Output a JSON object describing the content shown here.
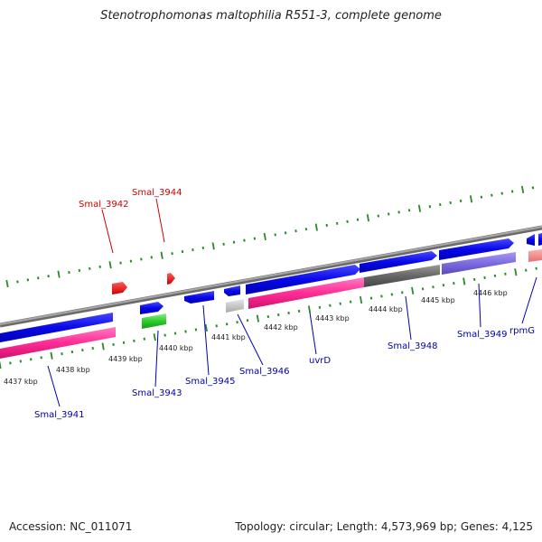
{
  "title": "Stenotrophomonas maltophilia R551-3, complete genome",
  "footer": {
    "accession": "Accession: NC_011071",
    "summary": "Topology: circular; Length: 4,573,969 bp; Genes: 4,125"
  },
  "colors": {
    "backbone": "#888888",
    "tick": "#2a8a2a",
    "forward_gene": "#0a0ae6",
    "reverse_rna": "#ff2d95",
    "hypothetical_label": "#cc0000",
    "gene_label": "#0000aa"
  },
  "kbp_ticks": [
    "4437 kbp",
    "4438 kbp",
    "4439 kbp",
    "4440 kbp",
    "4441 kbp",
    "4442 kbp",
    "4443 kbp",
    "4444 kbp",
    "4445 kbp",
    "4446 kbp"
  ],
  "gene_labels": [
    {
      "text": "Smal_3941",
      "color": "blue"
    },
    {
      "text": "Smal_3942",
      "color": "red"
    },
    {
      "text": "Smal_3943",
      "color": "blue"
    },
    {
      "text": "Smal_3944",
      "color": "red"
    },
    {
      "text": "Smal_3945",
      "color": "blue"
    },
    {
      "text": "Smal_3946",
      "color": "blue"
    },
    {
      "text": "uvrD",
      "color": "blue"
    },
    {
      "text": "Smal_3948",
      "color": "blue"
    },
    {
      "text": "Smal_3949",
      "color": "blue"
    },
    {
      "text": "rpmG",
      "color": "blue"
    }
  ]
}
